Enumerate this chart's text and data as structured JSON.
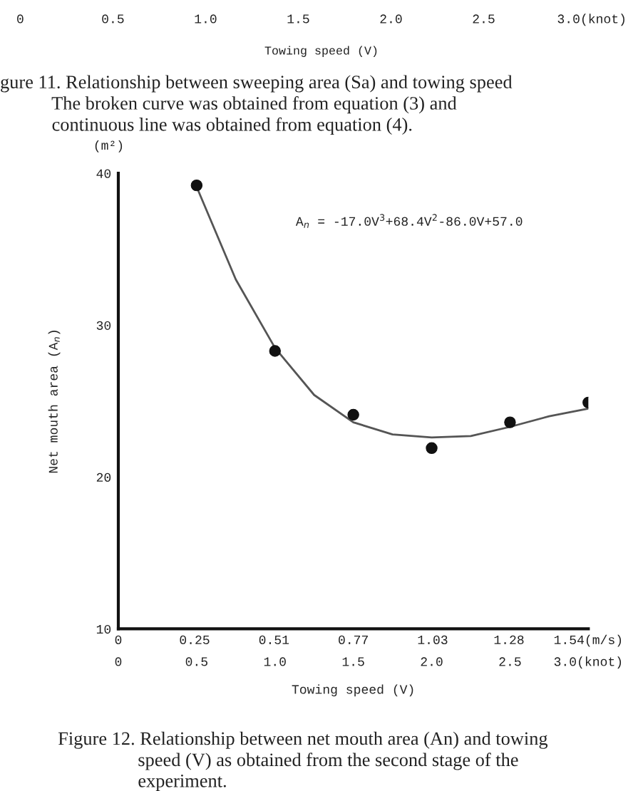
{
  "chart_data": {
    "type": "scatter",
    "xlabel": "Towing speed (V)",
    "ylabel": "Net mouth area (A$_{n}$)",
    "series": [
      {
        "color": "#111111",
        "marker": "circle",
        "x": [
          0.5,
          1.0,
          1.5,
          2.0,
          2.5,
          3.0
        ],
        "values": [
          39.2,
          28.3,
          24.1,
          21.9,
          23.6,
          24.9
        ]
      },
      {
        "type": "line",
        "color": "#555555",
        "marker": "none",
        "line_style": "solid",
        "x": [
          0.5,
          0.75,
          1.0,
          1.25,
          1.5,
          1.75,
          2.0,
          2.25,
          2.5,
          2.75,
          3.0
        ],
        "values": [
          39.1,
          33.0,
          28.5,
          25.4,
          23.6,
          22.8,
          22.6,
          22.7,
          23.3,
          24.0,
          24.5
        ]
      }
    ],
    "xlim": [
      0,
      3.0
    ],
    "xticks": [
      0,
      0.5,
      {
        "value": 1.0,
        "label": "1.0"
      },
      1.5,
      {
        "value": 2.0,
        "label": "2.0"
      },
      2.5,
      {
        "value": 3.0,
        "label": "3.0(knot)"
      }
    ],
    "x2lim": [
      0,
      1.54
    ],
    "x2ticks": [
      0,
      0.25,
      0.51,
      0.77,
      1.03,
      1.28,
      {
        "value": 1.54,
        "label": "1.54(m/s)"
      }
    ],
    "ylim": [
      10,
      40
    ],
    "yticks": [
      10,
      20,
      30,
      40
    ],
    "grid": false,
    "legend": false,
    "annotations": [
      "0          0.5         1.0         1.5         2.0         2.5        3.0(knot)",
      "Towing speed (V)",
      "gure 11. Relationship between sweeping area (Sa) and towing speed\n           The broken curve was obtained from equation (3) and\n           continuous line was obtained from equation (4).",
      "(m²)",
      "A$_{n}$ = -17.0V$^{3}$+68.4V$^{2}$-86.0V+57.0",
      "Figure 12. Relationship between net mouth area (An) and towing\n                 speed (V) as obtained from the second stage of the\n                 experiment."
    ]
  }
}
